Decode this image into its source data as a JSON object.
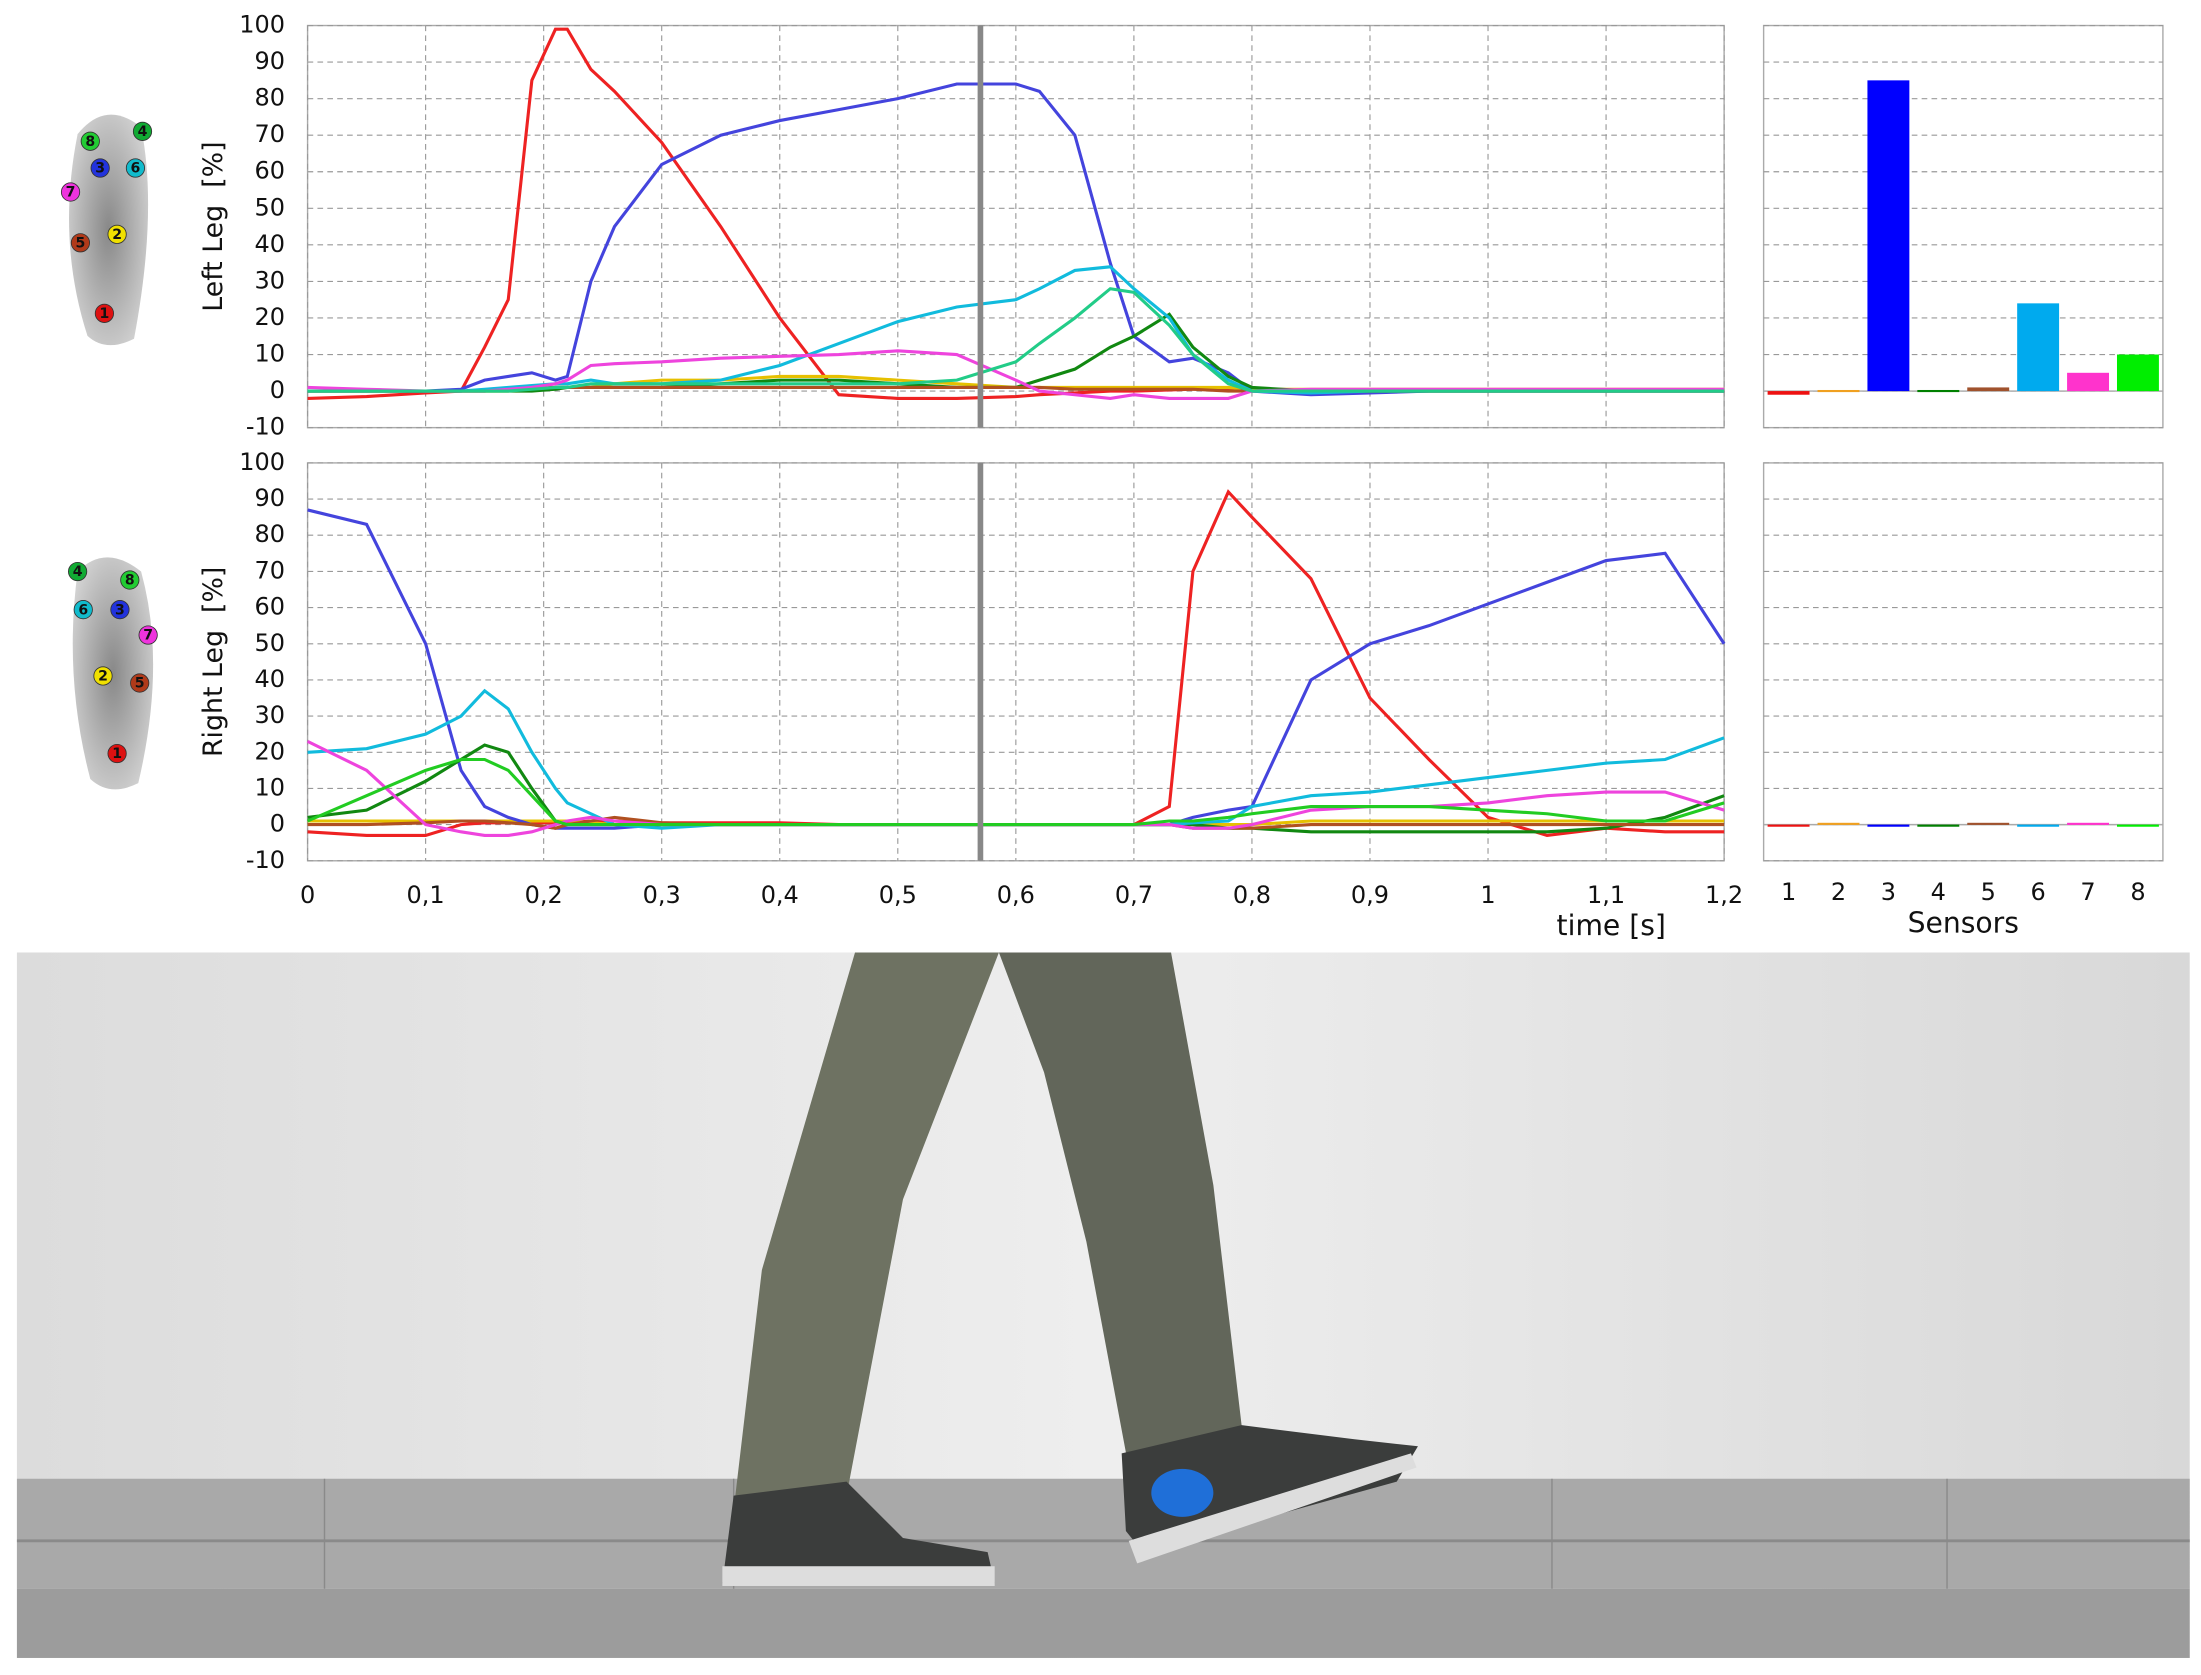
{
  "chart_data": [
    {
      "type": "line",
      "ylabel": "Left Leg  [%]",
      "xlim": [
        0,
        1.2
      ],
      "ylim": [
        -10,
        100
      ],
      "yticks": [
        -10,
        0,
        10,
        20,
        30,
        40,
        50,
        60,
        70,
        80,
        90,
        100
      ],
      "grid": true,
      "cursor_x": 0.57,
      "x": [
        0,
        0.05,
        0.1,
        0.13,
        0.15,
        0.17,
        0.19,
        0.21,
        0.22,
        0.24,
        0.26,
        0.3,
        0.35,
        0.4,
        0.45,
        0.5,
        0.55,
        0.6,
        0.62,
        0.65,
        0.68,
        0.7,
        0.73,
        0.75,
        0.78,
        0.8,
        0.85,
        0.9,
        0.95,
        1.0,
        1.05,
        1.1,
        1.15,
        1.2
      ],
      "series": [
        {
          "color": "#ee2222",
          "values": [
            -2,
            -1.5,
            -0.5,
            0,
            12,
            25,
            85,
            99,
            99,
            88,
            82,
            68,
            45,
            20,
            -1,
            -2,
            -2,
            -1.5,
            -1,
            -0.5,
            0,
            0,
            0.3,
            0.5,
            0.5,
            0.5,
            0.3,
            0,
            0,
            0,
            0,
            0,
            0,
            0
          ]
        },
        {
          "color": "#e6c000",
          "values": [
            0,
            0,
            0,
            0,
            0,
            0,
            0.5,
            1,
            1,
            1,
            2,
            3,
            3,
            4,
            4,
            3,
            2,
            1,
            1,
            1,
            1,
            1,
            1,
            1,
            1,
            0.5,
            0.5,
            0.5,
            0.5,
            0.5,
            0.5,
            0.5,
            0.5,
            0.5
          ]
        },
        {
          "color": "#4444dd",
          "values": [
            0,
            0,
            0,
            0.5,
            3,
            4,
            5,
            3,
            4,
            30,
            45,
            62,
            70,
            74,
            77,
            80,
            84,
            84,
            82,
            70,
            35,
            15,
            8,
            9,
            5,
            0,
            -1,
            -0.5,
            0,
            0,
            0,
            0,
            0,
            0
          ]
        },
        {
          "color": "#118811",
          "values": [
            0,
            0,
            0,
            0,
            0,
            0,
            0,
            0.5,
            1,
            1,
            1,
            1,
            2,
            3,
            3,
            2,
            1,
            1,
            3,
            6,
            12,
            15,
            21,
            12,
            4,
            1,
            0,
            0,
            0,
            0,
            0,
            0,
            0,
            0
          ]
        },
        {
          "color": "#b05020",
          "values": [
            0,
            0,
            0,
            0,
            0,
            0.5,
            1,
            1,
            1,
            1,
            1,
            1,
            1,
            1,
            1,
            1,
            1,
            1,
            1,
            0.5,
            0.5,
            0.5,
            0.5,
            0.5,
            0,
            0,
            0,
            0,
            0,
            0,
            0,
            0,
            0,
            0
          ]
        },
        {
          "color": "#11bbdd",
          "values": [
            0,
            0,
            0,
            0,
            0.5,
            1,
            1.5,
            2,
            2,
            3,
            2,
            2,
            3,
            7,
            13,
            19,
            23,
            25,
            28,
            33,
            34,
            28,
            20,
            10,
            3,
            0,
            -0.5,
            0,
            0,
            0,
            0,
            0,
            0,
            0
          ]
        },
        {
          "color": "#ee44dd",
          "values": [
            1,
            0.5,
            0,
            0,
            0,
            0.5,
            1,
            2,
            3,
            7,
            7.5,
            8,
            9,
            9.5,
            10,
            11,
            10,
            3,
            0,
            -1,
            -2,
            -1,
            -2,
            -2,
            -2,
            0,
            0.5,
            0.5,
            0.5,
            0.5,
            0.5,
            0.5,
            0.5,
            0.5
          ]
        },
        {
          "color": "#22cc88",
          "values": [
            0,
            0,
            0,
            0,
            0,
            0,
            0.5,
            1,
            1,
            2,
            2,
            2,
            2,
            2,
            2,
            2,
            3,
            8,
            13,
            20,
            28,
            27,
            18,
            10,
            2,
            0,
            0,
            0,
            0,
            0,
            0,
            0,
            0,
            0
          ]
        }
      ]
    },
    {
      "type": "line",
      "ylabel": "Right Leg  [%]",
      "xlabel": "time [s]",
      "xlim": [
        0,
        1.2
      ],
      "ylim": [
        -10,
        100
      ],
      "yticks": [
        -10,
        0,
        10,
        20,
        30,
        40,
        50,
        60,
        70,
        80,
        90,
        100
      ],
      "grid": true,
      "cursor_x": 0.57,
      "xticks": [
        0,
        {
          "value": 0.1,
          "label": "0,1"
        },
        {
          "value": 0.2,
          "label": "0,2"
        },
        {
          "value": 0.3,
          "label": "0,3"
        },
        {
          "value": 0.4,
          "label": "0,4"
        },
        {
          "value": 0.5,
          "label": "0,5"
        },
        {
          "value": 0.6,
          "label": "0,6"
        },
        {
          "value": 0.7,
          "label": "0,7"
        },
        {
          "value": 0.8,
          "label": "0,8"
        },
        {
          "value": 0.9,
          "label": "0,9"
        },
        1,
        {
          "value": 1.1,
          "label": "1,1"
        },
        {
          "value": 1.2,
          "label": "1,2"
        }
      ],
      "x": [
        0,
        0.05,
        0.1,
        0.13,
        0.15,
        0.17,
        0.19,
        0.21,
        0.22,
        0.24,
        0.26,
        0.3,
        0.35,
        0.4,
        0.45,
        0.5,
        0.55,
        0.6,
        0.62,
        0.65,
        0.68,
        0.7,
        0.73,
        0.75,
        0.78,
        0.8,
        0.85,
        0.9,
        0.95,
        1.0,
        1.05,
        1.1,
        1.15,
        1.2
      ],
      "series": [
        {
          "color": "#ee2222",
          "values": [
            -2,
            -3,
            -3,
            0,
            0.5,
            0.5,
            0.5,
            0.5,
            0.5,
            1,
            1,
            0.5,
            0.5,
            0.5,
            0,
            0,
            0,
            0,
            0,
            0,
            0,
            0,
            5,
            70,
            92,
            85,
            68,
            35,
            18,
            2,
            -3,
            -1,
            -2,
            -2
          ]
        },
        {
          "color": "#e6c000",
          "values": [
            1,
            1,
            1,
            1,
            1,
            1,
            1,
            1,
            1,
            0.5,
            0,
            0,
            0,
            0,
            0,
            0,
            0,
            0,
            0,
            0,
            0,
            0,
            0,
            0,
            0,
            0,
            1,
            1,
            1,
            1,
            1,
            1,
            1,
            1
          ]
        },
        {
          "color": "#4444dd",
          "values": [
            87,
            83,
            50,
            15,
            5,
            2,
            0,
            -1,
            -1,
            -1,
            -1,
            0,
            0,
            0,
            0,
            0,
            0,
            0,
            0,
            0,
            0,
            0,
            0,
            2,
            4,
            5,
            40,
            50,
            55,
            61,
            67,
            73,
            75,
            50
          ]
        },
        {
          "color": "#118811",
          "values": [
            2,
            4,
            12,
            18,
            22,
            20,
            10,
            1,
            0,
            0,
            0,
            0,
            0,
            0,
            0,
            0,
            0,
            0,
            0,
            0,
            0,
            0,
            0,
            0,
            -1,
            -1,
            -2,
            -2,
            -2,
            -2,
            -2,
            -1,
            2,
            8
          ]
        },
        {
          "color": "#b05020",
          "values": [
            0,
            0,
            0.5,
            1,
            1,
            0.5,
            0,
            -1,
            0,
            1,
            2,
            0.5,
            0,
            0,
            0,
            0,
            0,
            0,
            0,
            0,
            0,
            0,
            0,
            -1,
            -1,
            -1,
            0,
            0,
            0,
            0,
            0,
            0,
            0,
            0
          ]
        },
        {
          "color": "#11bbdd",
          "values": [
            20,
            21,
            25,
            30,
            37,
            32,
            20,
            10,
            6,
            3,
            0,
            -1,
            0,
            0,
            0,
            0,
            0,
            0,
            0,
            0,
            0,
            0,
            0,
            0.5,
            1,
            5,
            8,
            9,
            11,
            13,
            15,
            17,
            18,
            24
          ]
        },
        {
          "color": "#ee44dd",
          "values": [
            23,
            15,
            0,
            -2,
            -3,
            -3,
            -2,
            0,
            1,
            2,
            1,
            0,
            0,
            0,
            0,
            0,
            0,
            0,
            0,
            0,
            0,
            0,
            0,
            -1,
            -1,
            0,
            4,
            5,
            5,
            6,
            8,
            9,
            9,
            4
          ]
        },
        {
          "color": "#22cc22",
          "values": [
            1,
            8,
            15,
            18,
            18,
            15,
            8,
            1,
            0,
            0,
            0,
            0,
            0,
            0,
            0,
            0,
            0,
            0,
            0,
            0,
            0,
            0,
            1,
            1,
            2,
            3,
            5,
            5,
            5,
            4,
            3,
            1,
            1,
            6
          ]
        }
      ]
    },
    {
      "type": "bar",
      "ylim": [
        -10,
        100
      ],
      "grid": true,
      "values": [
        -1,
        0.3,
        85,
        0.3,
        1,
        24,
        5,
        10
      ],
      "colors": [
        "#ee1111",
        "#f0a020",
        "#0000ff",
        "#008000",
        "#a0522d",
        "#00aaee",
        "#ff33cc",
        "#00ee00"
      ]
    },
    {
      "type": "bar",
      "ylim": [
        -10,
        100
      ],
      "grid": true,
      "xlabel": "Sensors",
      "categories": [
        "1",
        "2",
        "3",
        "4",
        "5",
        "6",
        "7",
        "8"
      ],
      "values": [
        0,
        0.5,
        0,
        0,
        0.5,
        0,
        0.5,
        0
      ],
      "colors": [
        "#ee1111",
        "#f0a020",
        "#0000ff",
        "#008000",
        "#a0522d",
        "#00aaee",
        "#ff33cc",
        "#00ee00"
      ]
    }
  ],
  "insoles": [
    {
      "sensors": [
        "1",
        "2",
        "3",
        "4",
        "5",
        "6",
        "7",
        "8"
      ]
    },
    {
      "sensors": [
        "1",
        "2",
        "3",
        "4",
        "5",
        "6",
        "7",
        "8"
      ]
    }
  ]
}
